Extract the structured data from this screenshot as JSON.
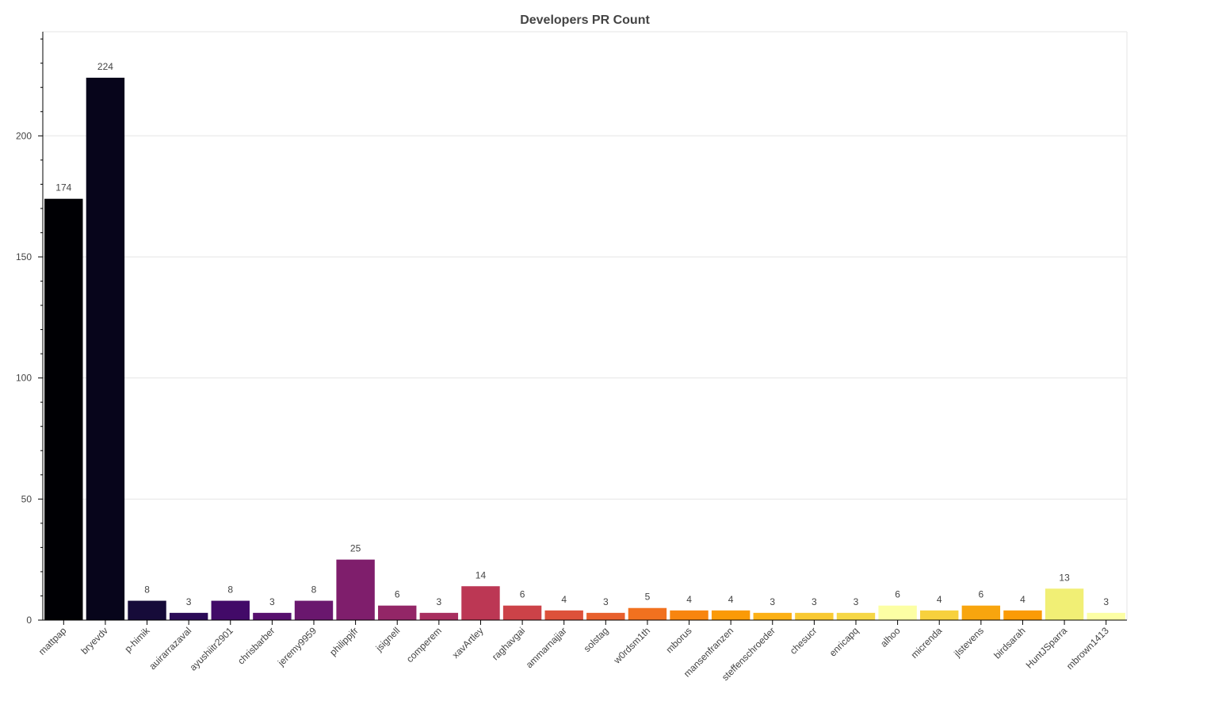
{
  "chart_data": {
    "type": "bar",
    "title": "Developers PR Count",
    "xlabel": "",
    "ylabel": "",
    "ylim": [
      0,
      243
    ],
    "yticks": [
      0,
      50,
      100,
      150,
      200
    ],
    "grid": true,
    "categories": [
      "mattpap",
      "bryevdv",
      "p-himik",
      "auirarrazaval",
      "ayushiitr2901",
      "chrisbarber",
      "jeremy9959",
      "philippjfr",
      "jsignell",
      "comperem",
      "xavArtley",
      "raghavgai",
      "ammarnajjar",
      "solstag",
      "w0rdsm1th",
      "mborus",
      "mansenfranzen",
      "steffenschroeder",
      "chesucr",
      "enricapq",
      "alhoo",
      "micrenda",
      "jlstevens",
      "birdsarah",
      "HuntJSparra",
      "mbrown1413"
    ],
    "values": [
      174,
      224,
      8,
      3,
      8,
      3,
      8,
      25,
      6,
      3,
      14,
      6,
      4,
      3,
      5,
      4,
      4,
      3,
      3,
      3,
      6,
      4,
      6,
      4,
      13,
      3
    ],
    "colors": [
      "#000004",
      "#07051b",
      "#160b39",
      "#2b0b57",
      "#420a68",
      "#57106e",
      "#6a176e",
      "#7f1e6c",
      "#932667",
      "#a82e5f",
      "#bc3754",
      "#cc4248",
      "#dd513a",
      "#e8602d",
      "#f1711f",
      "#f8850f",
      "#fb9a06",
      "#fcb014",
      "#f9c932",
      "#f6d746",
      "#fcffa4",
      "#f7d13d",
      "#f8a50e",
      "#fb9b06",
      "#f1ef75",
      "#fcffa4"
    ]
  }
}
